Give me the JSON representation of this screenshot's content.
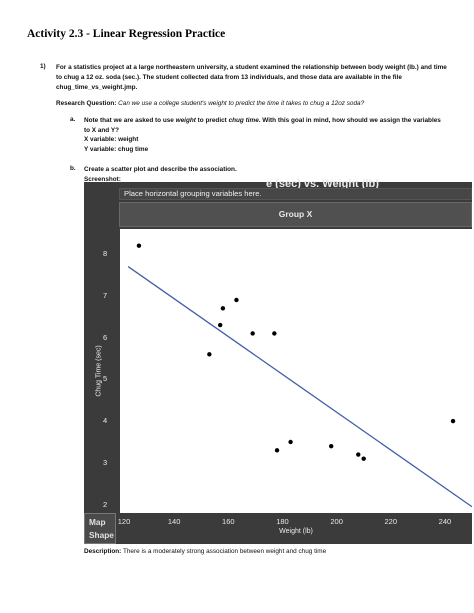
{
  "title": "Activity 2.3 - Linear Regression Practice",
  "question": {
    "number": "1)",
    "text": "For a statistics project at a large northeastern university, a student examined the relationship between body weight (lb.) and time to chug a 12 oz. soda (sec.). The student collected data from 13 individuals, and those data are available in the file chug_time_vs_weight.jmp."
  },
  "research_question": {
    "label": "Research Question:",
    "text": "Can we use a college student's weight to predict the time it takes to chug a 12oz soda?"
  },
  "part_a": {
    "letter": "a.",
    "prompt_1": "Note that we are asked to use ",
    "prompt_w": "weight",
    "prompt_2": " to predict ",
    "prompt_c": "chug time",
    "prompt_3": ". With this goal in mind, how should we assign the variables to X and Y?",
    "x_answer": "X variable: weight",
    "y_answer": "Y variable: chug time"
  },
  "part_b": {
    "letter": "b.",
    "prompt": "Create a scatter plot and describe the association.",
    "screenshot_label": "Screenshot:"
  },
  "jmp": {
    "header_title": "e (sec) vs. Weight (lb)",
    "hint": "Place horizontal grouping variables here.",
    "group": "Group X",
    "map_shape_1": "Map",
    "map_shape_2": "Shape"
  },
  "chart_data": {
    "type": "scatter",
    "xlabel": "Weight (lb)",
    "ylabel": "Chug Time (sec)",
    "xlim": [
      120,
      250
    ],
    "ylim": [
      1.8,
      8.6
    ],
    "xticks": [
      120,
      140,
      160,
      180,
      200,
      220,
      240
    ],
    "yticks": [
      2,
      3,
      4,
      5,
      6,
      7,
      8
    ],
    "points": [
      {
        "x": 127,
        "y": 8.2
      },
      {
        "x": 153,
        "y": 5.6
      },
      {
        "x": 157,
        "y": 6.3
      },
      {
        "x": 158,
        "y": 6.7
      },
      {
        "x": 163,
        "y": 6.9
      },
      {
        "x": 169,
        "y": 6.1
      },
      {
        "x": 177,
        "y": 6.1
      },
      {
        "x": 178,
        "y": 3.3
      },
      {
        "x": 183,
        "y": 3.5
      },
      {
        "x": 198,
        "y": 3.4
      },
      {
        "x": 208,
        "y": 3.2
      },
      {
        "x": 210,
        "y": 3.1
      },
      {
        "x": 243,
        "y": 4.0
      }
    ],
    "fit_line": {
      "x": [
        123,
        250
      ],
      "y": [
        7.7,
        1.95
      ]
    },
    "line_color": "#3f5fa8",
    "point_color": "#000000"
  },
  "description": {
    "label": "Description:",
    "text": "There is a moderately strong association between weight and chug time"
  }
}
